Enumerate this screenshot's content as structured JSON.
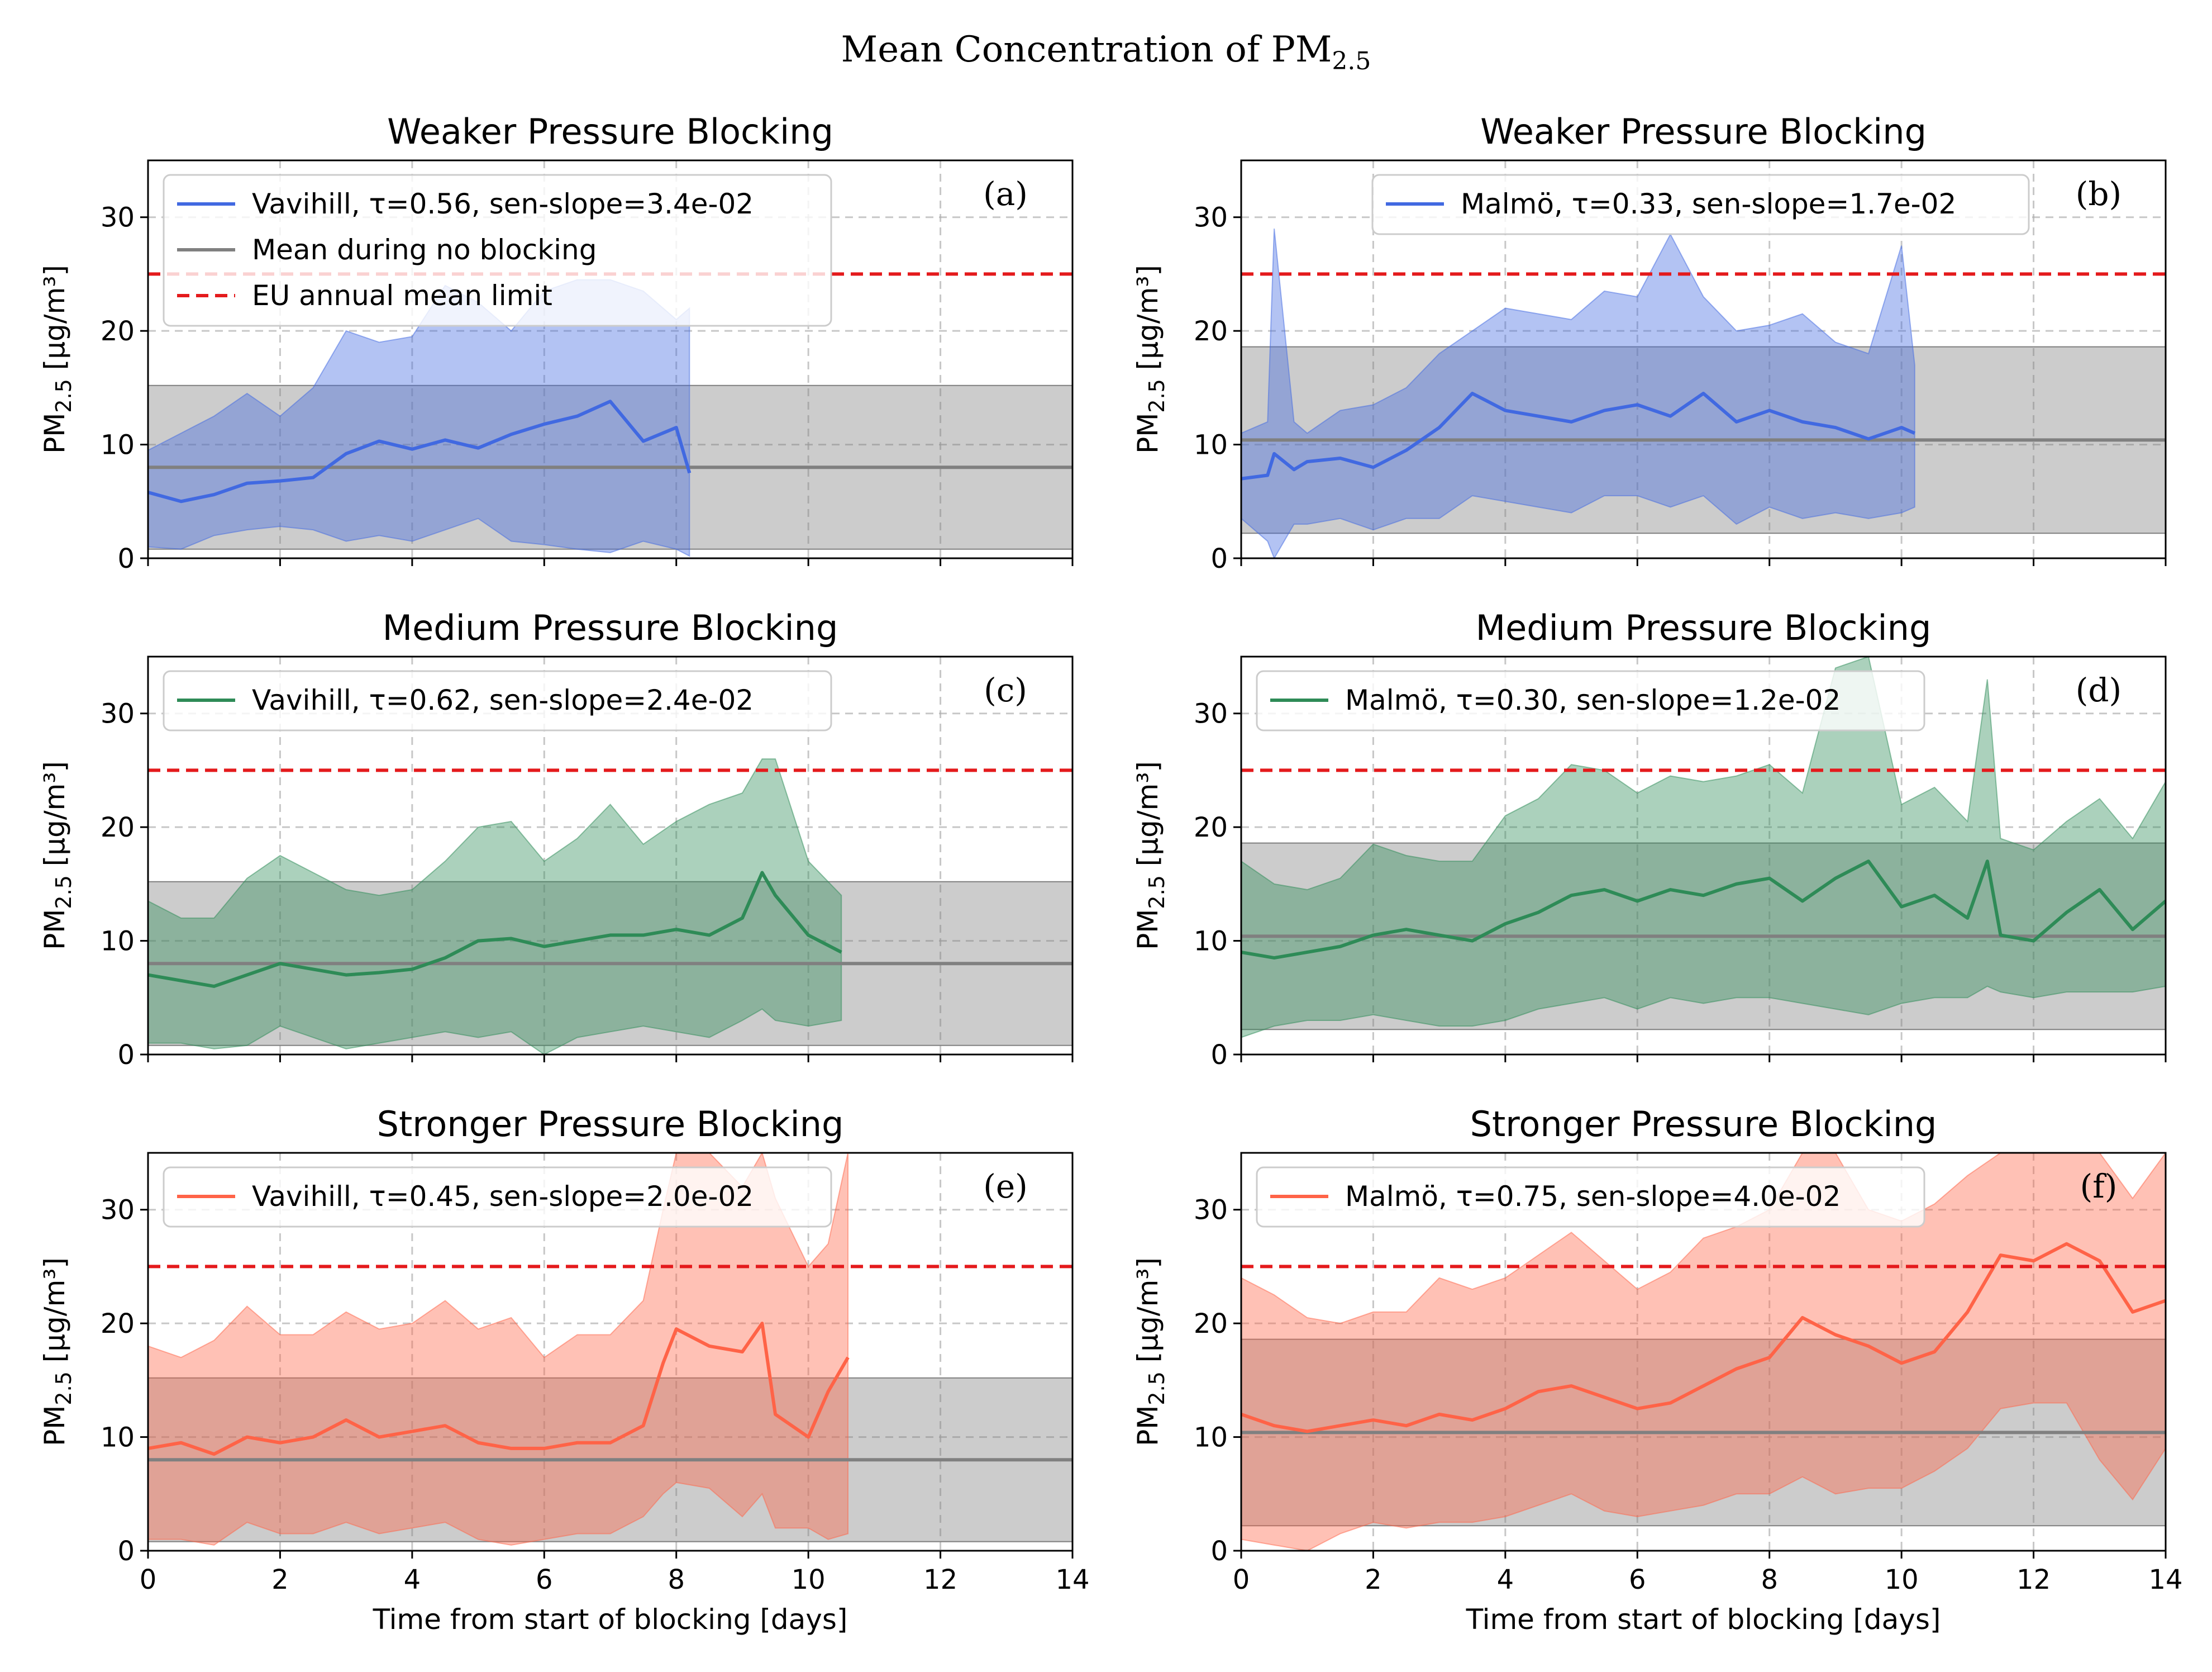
{
  "figure": {
    "title_prefix": "Mean Concentration of PM",
    "title_sub": "2.5"
  },
  "colors": {
    "weak": "#4169e1",
    "medium": "#2e8b57",
    "strong": "#ff6347",
    "baseline": "#808080",
    "baseline_band": "#c8c8c8",
    "limit": "#e41a1c"
  },
  "axes": {
    "xlabel": "Time from start of blocking [days]",
    "ylabel_prefix": "PM",
    "ylabel_sub": "2.5",
    "ylabel_suffix": " [µg/m³]",
    "xlim": [
      0,
      14
    ],
    "ylim": [
      0,
      35
    ],
    "xticks": [
      0,
      2,
      4,
      6,
      8,
      10,
      12,
      14
    ],
    "yticks": [
      0,
      10,
      20,
      30
    ],
    "grid": true
  },
  "chart_data": [
    {
      "type": "line",
      "panel": "(a)",
      "title": "Weaker Pressure Blocking",
      "station": "Vavihill",
      "legend": [
        "Vavihill, τ=0.56, sen-slope=3.4e-02",
        "Mean during no blocking",
        "EU annual mean limit"
      ],
      "legend_placement": "upper-left",
      "color": "#4169e1",
      "baseline": {
        "mean": 8.0,
        "low": 0.8,
        "high": 15.2
      },
      "limit": 25,
      "series": [
        {
          "name": "Vavihill",
          "x": [
            0,
            0.5,
            1.0,
            1.5,
            2.0,
            2.5,
            3.0,
            3.5,
            4.0,
            4.5,
            5.0,
            5.5,
            6.0,
            6.5,
            7.0,
            7.5,
            8.0,
            8.2
          ],
          "mean": [
            5.8,
            5.0,
            5.6,
            6.6,
            6.8,
            7.1,
            9.2,
            10.3,
            9.6,
            10.4,
            9.7,
            10.9,
            11.8,
            12.5,
            13.8,
            10.3,
            11.5,
            7.5
          ],
          "upper": [
            9.5,
            11.0,
            12.5,
            14.5,
            12.5,
            15.0,
            20.0,
            19.0,
            19.5,
            24.0,
            22.5,
            20.0,
            23.5,
            24.5,
            24.5,
            23.5,
            21.0,
            22.0
          ],
          "lower": [
            1.0,
            0.8,
            2.0,
            2.5,
            2.8,
            2.5,
            1.5,
            2.0,
            1.5,
            2.5,
            3.5,
            1.5,
            1.2,
            0.8,
            0.5,
            1.5,
            0.8,
            0.2
          ]
        }
      ]
    },
    {
      "type": "line",
      "panel": "(b)",
      "title": "Weaker Pressure Blocking",
      "station": "Malmö",
      "legend": [
        "Malmö, τ=0.33, sen-slope=1.7e-02"
      ],
      "legend_placement": "upper-center",
      "color": "#4169e1",
      "baseline": {
        "mean": 10.4,
        "low": 2.2,
        "high": 18.6
      },
      "limit": 25,
      "series": [
        {
          "name": "Malmö",
          "x": [
            0,
            0.4,
            0.5,
            0.8,
            1.0,
            1.5,
            2.0,
            2.5,
            3.0,
            3.5,
            4.0,
            4.5,
            5.0,
            5.5,
            6.0,
            6.5,
            7.0,
            7.5,
            8.0,
            8.5,
            9.0,
            9.5,
            10.0,
            10.2
          ],
          "mean": [
            7.0,
            7.3,
            9.2,
            7.8,
            8.5,
            8.8,
            8.0,
            9.5,
            11.5,
            14.5,
            13.0,
            12.5,
            12.0,
            13.0,
            13.5,
            12.5,
            14.5,
            12.0,
            13.0,
            12.0,
            11.5,
            10.5,
            11.5,
            11.0
          ],
          "upper": [
            11.0,
            12.0,
            29.0,
            12.0,
            11.0,
            13.0,
            13.5,
            15.0,
            18.0,
            20.0,
            22.0,
            21.5,
            21.0,
            23.5,
            23.0,
            28.5,
            23.0,
            20.0,
            20.5,
            21.5,
            19.0,
            18.0,
            27.5,
            17.0
          ],
          "lower": [
            3.5,
            1.5,
            0.0,
            3.0,
            3.0,
            3.5,
            2.5,
            3.5,
            3.5,
            5.5,
            5.0,
            4.5,
            4.0,
            5.5,
            5.5,
            4.5,
            5.5,
            3.0,
            4.5,
            3.5,
            4.0,
            3.5,
            4.0,
            4.5
          ]
        }
      ]
    },
    {
      "type": "line",
      "panel": "(c)",
      "title": "Medium Pressure Blocking",
      "station": "Vavihill",
      "legend": [
        "Vavihill, τ=0.62, sen-slope=2.4e-02"
      ],
      "legend_placement": "upper-left",
      "color": "#2e8b57",
      "baseline": {
        "mean": 8.0,
        "low": 0.8,
        "high": 15.2
      },
      "limit": 25,
      "series": [
        {
          "name": "Vavihill",
          "x": [
            0,
            0.5,
            1.0,
            1.5,
            2.0,
            2.5,
            3.0,
            3.5,
            4.0,
            4.5,
            5.0,
            5.5,
            6.0,
            6.5,
            7.0,
            7.5,
            8.0,
            8.5,
            9.0,
            9.3,
            9.5,
            10.0,
            10.5
          ],
          "mean": [
            7.0,
            6.5,
            6.0,
            7.0,
            8.0,
            7.5,
            7.0,
            7.2,
            7.5,
            8.5,
            10.0,
            10.2,
            9.5,
            10.0,
            10.5,
            10.5,
            11.0,
            10.5,
            12.0,
            16.0,
            14.0,
            10.5,
            9.0
          ],
          "upper": [
            13.5,
            12.0,
            12.0,
            15.5,
            17.5,
            16.0,
            14.5,
            14.0,
            14.5,
            17.0,
            20.0,
            20.5,
            17.0,
            19.0,
            22.0,
            18.5,
            20.5,
            22.0,
            23.0,
            26.0,
            26.0,
            17.0,
            14.0
          ],
          "lower": [
            1.0,
            1.0,
            0.5,
            0.8,
            2.5,
            1.5,
            0.5,
            1.0,
            1.5,
            2.0,
            1.5,
            2.0,
            0.0,
            1.5,
            2.0,
            2.5,
            2.0,
            1.5,
            3.0,
            4.0,
            3.0,
            2.5,
            3.0
          ]
        }
      ]
    },
    {
      "type": "line",
      "panel": "(d)",
      "title": "Medium Pressure Blocking",
      "station": "Malmö",
      "legend": [
        "Malmö, τ=0.30, sen-slope=1.2e-02"
      ],
      "legend_placement": "upper-left",
      "color": "#2e8b57",
      "baseline": {
        "mean": 10.4,
        "low": 2.2,
        "high": 18.6
      },
      "limit": 25,
      "series": [
        {
          "name": "Malmö",
          "x": [
            0,
            0.5,
            1.0,
            1.5,
            2.0,
            2.5,
            3.0,
            3.5,
            4.0,
            4.5,
            5.0,
            5.5,
            6.0,
            6.5,
            7.0,
            7.5,
            8.0,
            8.5,
            9.0,
            9.5,
            10.0,
            10.5,
            11.0,
            11.3,
            11.5,
            12.0,
            12.5,
            13.0,
            13.5,
            14.0
          ],
          "mean": [
            9.0,
            8.5,
            9.0,
            9.5,
            10.5,
            11.0,
            10.5,
            10.0,
            11.5,
            12.5,
            14.0,
            14.5,
            13.5,
            14.5,
            14.0,
            15.0,
            15.5,
            13.5,
            15.5,
            17.0,
            13.0,
            14.0,
            12.0,
            17.0,
            10.5,
            10.0,
            12.5,
            14.5,
            11.0,
            13.5
          ],
          "upper": [
            17.0,
            15.0,
            14.5,
            15.5,
            18.5,
            17.5,
            17.0,
            17.0,
            21.0,
            22.5,
            25.5,
            25.0,
            23.0,
            24.5,
            24.0,
            24.5,
            25.5,
            23.0,
            34.0,
            35.0,
            22.0,
            23.5,
            20.5,
            33.0,
            19.0,
            18.0,
            20.5,
            22.5,
            19.0,
            24.0
          ],
          "lower": [
            1.5,
            2.5,
            3.0,
            3.0,
            3.5,
            3.0,
            2.5,
            2.5,
            3.0,
            4.0,
            4.5,
            5.0,
            4.0,
            5.0,
            4.5,
            5.0,
            5.0,
            4.5,
            4.0,
            3.5,
            4.5,
            5.0,
            5.0,
            6.0,
            5.5,
            5.0,
            5.5,
            5.5,
            5.5,
            6.0
          ]
        }
      ]
    },
    {
      "type": "line",
      "panel": "(e)",
      "title": "Stronger Pressure Blocking",
      "station": "Vavihill",
      "legend": [
        "Vavihill, τ=0.45, sen-slope=2.0e-02"
      ],
      "legend_placement": "upper-left",
      "color": "#ff6347",
      "baseline": {
        "mean": 8.0,
        "low": 0.8,
        "high": 15.2
      },
      "limit": 25,
      "series": [
        {
          "name": "Vavihill",
          "x": [
            0,
            0.5,
            1.0,
            1.5,
            2.0,
            2.5,
            3.0,
            3.5,
            4.0,
            4.5,
            5.0,
            5.5,
            6.0,
            6.5,
            7.0,
            7.5,
            7.8,
            8.0,
            8.5,
            9.0,
            9.3,
            9.5,
            10.0,
            10.3,
            10.6
          ],
          "mean": [
            9.0,
            9.5,
            8.5,
            10.0,
            9.5,
            10.0,
            11.5,
            10.0,
            10.5,
            11.0,
            9.5,
            9.0,
            9.0,
            9.5,
            9.5,
            11.0,
            16.5,
            19.5,
            18.0,
            17.5,
            20.0,
            12.0,
            10.0,
            14.0,
            17.0
          ],
          "upper": [
            18.0,
            17.0,
            18.5,
            21.5,
            19.0,
            19.0,
            21.0,
            19.5,
            20.0,
            22.0,
            19.5,
            20.5,
            17.0,
            19.0,
            19.0,
            22.0,
            30.0,
            35.0,
            35.0,
            32.0,
            35.0,
            31.0,
            25.0,
            27.0,
            35.0
          ],
          "lower": [
            1.0,
            1.0,
            0.5,
            2.5,
            1.5,
            1.5,
            2.5,
            1.5,
            2.0,
            2.5,
            1.0,
            0.5,
            1.0,
            1.5,
            1.5,
            3.0,
            5.0,
            6.0,
            5.5,
            3.0,
            5.0,
            2.0,
            2.0,
            1.0,
            1.5
          ]
        }
      ]
    },
    {
      "type": "line",
      "panel": "(f)",
      "title": "Stronger Pressure Blocking",
      "station": "Malmö",
      "legend": [
        "Malmö, τ=0.75, sen-slope=4.0e-02"
      ],
      "legend_placement": "upper-left",
      "color": "#ff6347",
      "baseline": {
        "mean": 10.4,
        "low": 2.2,
        "high": 18.6
      },
      "limit": 25,
      "series": [
        {
          "name": "Malmö",
          "x": [
            0,
            0.5,
            1.0,
            1.5,
            2.0,
            2.5,
            3.0,
            3.5,
            4.0,
            4.5,
            5.0,
            5.5,
            6.0,
            6.5,
            7.0,
            7.5,
            8.0,
            8.5,
            9.0,
            9.5,
            10.0,
            10.5,
            11.0,
            11.5,
            12.0,
            12.5,
            13.0,
            13.5,
            14.0
          ],
          "mean": [
            12.0,
            11.0,
            10.5,
            11.0,
            11.5,
            11.0,
            12.0,
            11.5,
            12.5,
            14.0,
            14.5,
            13.5,
            12.5,
            13.0,
            14.5,
            16.0,
            17.0,
            20.5,
            19.0,
            18.0,
            16.5,
            17.5,
            21.0,
            26.0,
            25.5,
            27.0,
            25.5,
            21.0,
            22.0
          ],
          "upper": [
            24.0,
            22.5,
            20.5,
            20.0,
            21.0,
            21.0,
            24.0,
            23.0,
            24.0,
            26.0,
            28.0,
            25.5,
            23.0,
            24.5,
            27.5,
            28.5,
            30.0,
            35.0,
            35.0,
            30.0,
            29.0,
            30.5,
            33.0,
            35.0,
            35.0,
            35.0,
            35.0,
            31.0,
            35.0
          ],
          "lower": [
            1.0,
            0.5,
            0.0,
            1.5,
            2.5,
            2.0,
            2.5,
            2.5,
            3.0,
            4.0,
            5.0,
            3.5,
            3.0,
            3.5,
            4.0,
            5.0,
            5.0,
            6.5,
            5.0,
            5.5,
            5.5,
            7.0,
            9.0,
            12.5,
            13.0,
            13.0,
            8.0,
            4.5,
            9.0
          ]
        }
      ]
    }
  ]
}
